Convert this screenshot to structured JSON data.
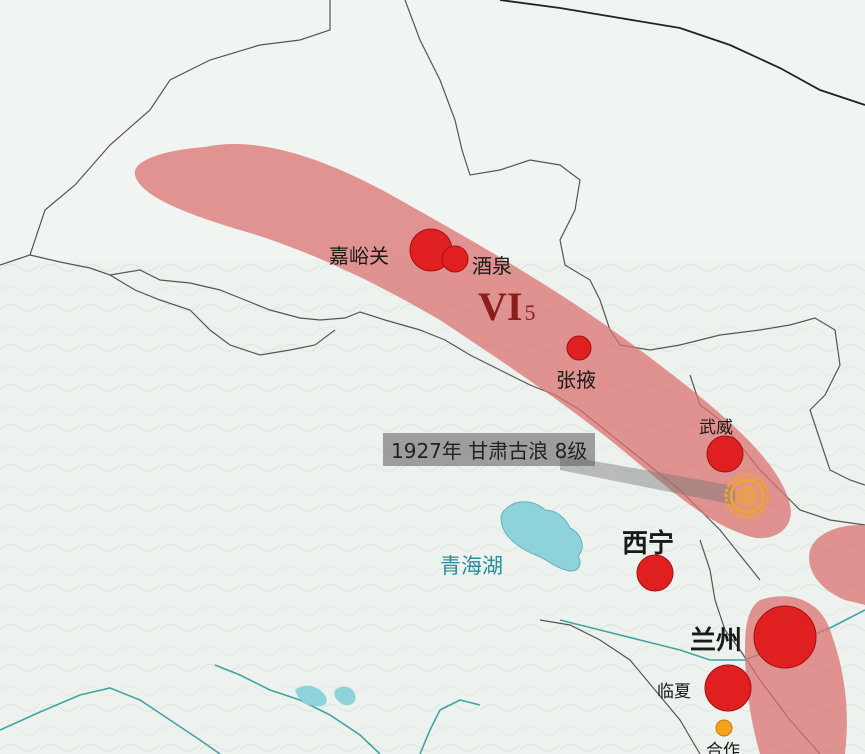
{
  "intensity_zone": {
    "roman": "VI",
    "subscript": "5",
    "color": "#d9726f"
  },
  "earthquake": {
    "label": "1927年  甘肃古浪  8级",
    "marker_color": "#f3a52a"
  },
  "lake": {
    "name": "青海湖",
    "color": "#8fd3da"
  },
  "cities": [
    {
      "name": "嘉峪关"
    },
    {
      "name": "酒泉"
    },
    {
      "name": "张掖"
    },
    {
      "name": "武威"
    },
    {
      "name": "西宁"
    },
    {
      "name": "兰州"
    },
    {
      "name": "临夏"
    },
    {
      "name": "合作"
    }
  ],
  "colors": {
    "city_marker": "#e02020",
    "small_marker": "#f5a21c",
    "boundary": "#555555",
    "river": "#3ea5a5"
  }
}
